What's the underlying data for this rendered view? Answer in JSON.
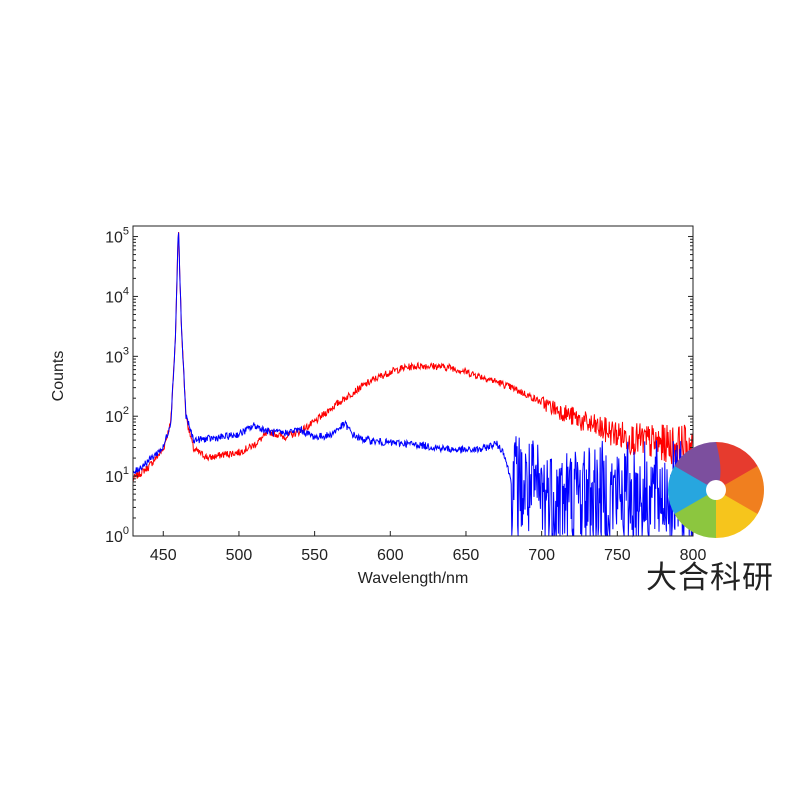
{
  "chart_data": {
    "type": "line",
    "title": "",
    "xlabel": "Wavelength/nm",
    "ylabel": "Counts",
    "xlim": [
      430,
      800
    ],
    "ylim": [
      1,
      150000
    ],
    "yscale": "log",
    "grid": false,
    "legend": "none",
    "x_ticks": [
      450,
      500,
      550,
      600,
      650,
      700,
      750,
      800
    ],
    "y_ticks": [
      {
        "base": "10",
        "exp": "0",
        "value": 1
      },
      {
        "base": "10",
        "exp": "1",
        "value": 10
      },
      {
        "base": "10",
        "exp": "2",
        "value": 100
      },
      {
        "base": "10",
        "exp": "3",
        "value": 1000
      },
      {
        "base": "10",
        "exp": "4",
        "value": 10000
      },
      {
        "base": "10",
        "exp": "5",
        "value": 100000
      }
    ],
    "series": [
      {
        "color": "#ff0000",
        "x": [
          430,
          440,
          450,
          455,
          458,
          460,
          462,
          465,
          470,
          480,
          490,
          500,
          510,
          520,
          530,
          540,
          550,
          560,
          570,
          580,
          590,
          600,
          610,
          620,
          630,
          640,
          650,
          660,
          670,
          680,
          690,
          700,
          710,
          720,
          730,
          740,
          750,
          760,
          770,
          780,
          790,
          800
        ],
        "y": [
          9,
          14,
          28,
          80,
          2000,
          150000,
          3000,
          100,
          28,
          20,
          23,
          25,
          33,
          55,
          45,
          55,
          80,
          130,
          200,
          300,
          420,
          550,
          650,
          700,
          680,
          650,
          550,
          460,
          380,
          300,
          230,
          170,
          130,
          100,
          75,
          60,
          50,
          42,
          38,
          35,
          33,
          32
        ]
      },
      {
        "color": "#0000ff",
        "x": [
          430,
          440,
          450,
          455,
          458,
          460,
          462,
          465,
          470,
          480,
          490,
          500,
          510,
          520,
          530,
          540,
          550,
          560,
          570,
          575,
          580,
          590,
          600,
          610,
          620,
          630,
          640,
          650,
          660,
          670,
          675,
          680,
          690,
          700,
          710,
          720,
          730,
          740,
          750,
          760,
          770,
          780,
          790,
          800
        ],
        "y": [
          11,
          18,
          30,
          80,
          2000,
          150000,
          3000,
          100,
          40,
          42,
          45,
          50,
          70,
          55,
          52,
          60,
          45,
          48,
          75,
          50,
          42,
          38,
          36,
          35,
          33,
          30,
          28,
          27,
          28,
          35,
          25,
          8,
          6,
          5,
          4.5,
          4.5,
          5,
          5,
          5,
          5,
          5,
          5,
          5,
          5
        ]
      }
    ]
  },
  "watermark": {
    "text": "大合科研",
    "logo_colors": [
      "#e63b2e",
      "#f07f1f",
      "#f6c51c",
      "#8cc63f",
      "#27a6df",
      "#7c4f9e"
    ]
  }
}
